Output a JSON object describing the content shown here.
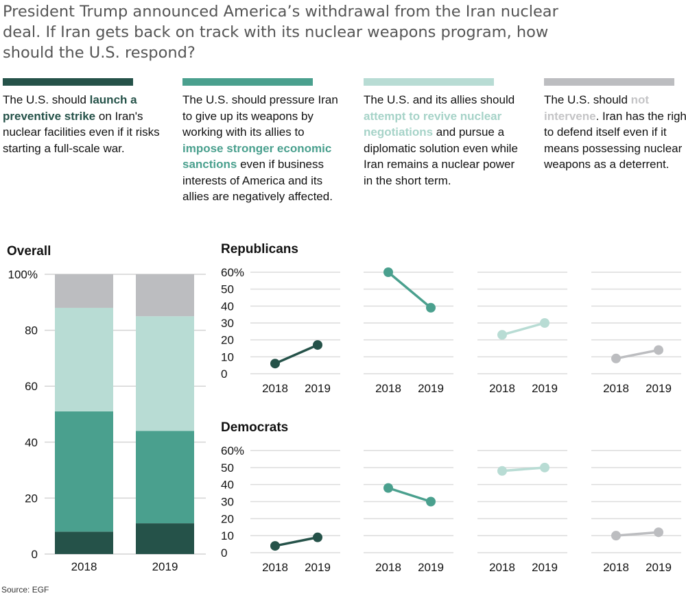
{
  "title_lines": [
    "President Trump announced America’s withdrawal from the Iran nuclear",
    "deal. If Iran gets back on track with its nuclear weapons program, how",
    "should the U.S. respond?"
  ],
  "options": [
    {
      "color": "#255249",
      "segments": [
        {
          "t": "The U.S. should "
        },
        {
          "t": "launch a preventive strike",
          "hl": true
        },
        {
          "t": " on Iran's nuclear facilities even if it risks starting a full-scale war."
        }
      ]
    },
    {
      "color": "#4aa08e",
      "segments": [
        {
          "t": "The U.S. should pressure Iran to give up its weapons by working with its allies to "
        },
        {
          "t": "impose stronger economic sanctions",
          "hl": true
        },
        {
          "t": " even if business interests of America and its allies are negatively affected."
        }
      ]
    },
    {
      "color": "#b8dcd4",
      "segments": [
        {
          "t": "The U.S. and its allies should "
        },
        {
          "t": "attempt to revive nuclear negotiations",
          "hl": true
        },
        {
          "t": " and pursue a diplomatic solution even while Iran remains a nuclear power in the short term."
        }
      ]
    },
    {
      "color": "#bcbdc0",
      "segments": [
        {
          "t": "The U.S. should "
        },
        {
          "t": "not intervene",
          "hl": true
        },
        {
          "t": ". Iran has the right to defend itself even if it means possessing nuclear weapons as a deterrent."
        }
      ]
    }
  ],
  "chart_data": [
    {
      "type": "bar",
      "stacked": true,
      "title": "Overall",
      "categories": [
        "2018",
        "2019"
      ],
      "series": [
        {
          "color": "#255249",
          "values": [
            8,
            11
          ]
        },
        {
          "color": "#4aa08e",
          "values": [
            43,
            33
          ]
        },
        {
          "color": "#b8dcd4",
          "values": [
            37,
            41
          ]
        },
        {
          "color": "#bcbdc0",
          "values": [
            12,
            15
          ]
        }
      ],
      "ylim": [
        0,
        100
      ],
      "yticks": [
        "0",
        "20",
        "40",
        "60",
        "80",
        "100%"
      ],
      "grid": true
    },
    {
      "type": "line",
      "title": "Republicans",
      "x": [
        "2018",
        "2019"
      ],
      "series": [
        {
          "color": "#255249",
          "values": [
            6,
            17
          ]
        },
        {
          "color": "#4aa08e",
          "values": [
            60,
            39
          ]
        },
        {
          "color": "#b8dcd4",
          "values": [
            23,
            30
          ]
        },
        {
          "color": "#bcbdc0",
          "values": [
            9,
            14
          ]
        }
      ],
      "ylim": [
        0,
        60
      ],
      "yticks": [
        "0",
        "10",
        "20",
        "30",
        "40",
        "50",
        "60%"
      ],
      "grid": true
    },
    {
      "type": "line",
      "title": "Democrats",
      "x": [
        "2018",
        "2019"
      ],
      "series": [
        {
          "color": "#255249",
          "values": [
            4,
            9
          ]
        },
        {
          "color": "#4aa08e",
          "values": [
            38,
            30
          ]
        },
        {
          "color": "#b8dcd4",
          "values": [
            48,
            50
          ]
        },
        {
          "color": "#bcbdc0",
          "values": [
            10,
            12
          ]
        }
      ],
      "ylim": [
        0,
        60
      ],
      "yticks": [
        "0",
        "10",
        "20",
        "30",
        "40",
        "50",
        "60%"
      ],
      "grid": true
    }
  ],
  "source": "Source: EGF"
}
